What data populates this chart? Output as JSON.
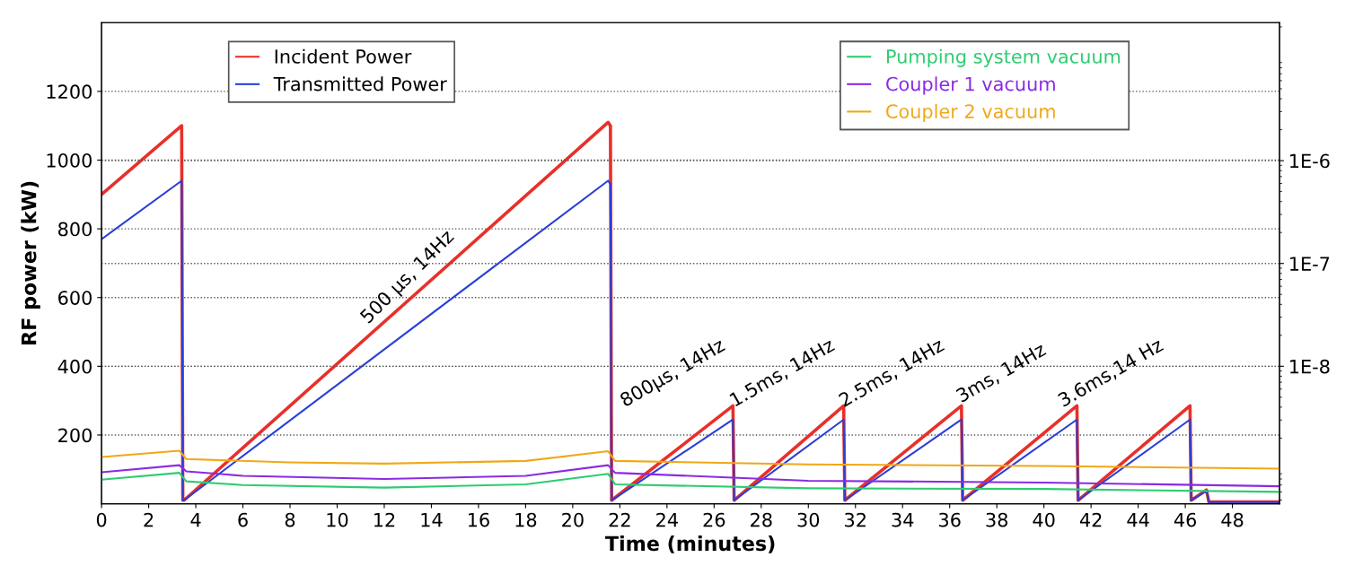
{
  "chart_data": {
    "type": "line",
    "xlabel": "Time (minutes)",
    "ylabel": "RF power (kW)",
    "xlim": [
      0,
      50
    ],
    "xticks": [
      0,
      2,
      4,
      6,
      8,
      10,
      12,
      14,
      16,
      18,
      20,
      22,
      24,
      26,
      28,
      30,
      32,
      34,
      36,
      38,
      40,
      42,
      44,
      46,
      48
    ],
    "ylim": [
      0,
      1400
    ],
    "yticks": [
      200,
      400,
      600,
      800,
      1000,
      1200
    ],
    "y2lim": [
      4.6e-10,
      2.2e-05
    ],
    "y2ticks": [
      {
        "value": 1e-08,
        "label": "1E-8"
      },
      {
        "value": 1e-07,
        "label": "1E-7"
      },
      {
        "value": 1e-06,
        "label": "1E-6"
      }
    ],
    "log": "y2",
    "grid": "y",
    "legend": "top",
    "series": [
      {
        "name": "Incident Power",
        "color": "#e8302a",
        "x": [
          0,
          3.4,
          3.45,
          3.5,
          21.5,
          21.6,
          21.65,
          26.8,
          26.85,
          31.5,
          31.55,
          36.5,
          36.55,
          41.4,
          41.45,
          46.2,
          46.25,
          46.9,
          47.0,
          50
        ],
        "values": [
          900,
          1100,
          10,
          10,
          1110,
          1100,
          10,
          285,
          10,
          285,
          10,
          285,
          10,
          285,
          10,
          285,
          10,
          40,
          5,
          5
        ]
      },
      {
        "name": "Transmitted Power",
        "color": "#2a3fd6",
        "x": [
          0,
          3.4,
          3.45,
          3.5,
          21.5,
          21.6,
          21.65,
          26.8,
          26.85,
          31.5,
          31.55,
          36.5,
          36.55,
          41.4,
          41.45,
          46.2,
          46.25,
          46.9,
          47.0,
          50
        ],
        "values": [
          770,
          940,
          10,
          10,
          940,
          930,
          10,
          245,
          10,
          245,
          10,
          245,
          10,
          245,
          10,
          245,
          10,
          38,
          5,
          5
        ]
      },
      {
        "name": "Pumping system vacuum",
        "color": "#2ecc71",
        "axis": "y2",
        "x": [
          0,
          3.3,
          3.6,
          6,
          12,
          18,
          21.5,
          21.8,
          30,
          40,
          50
        ],
        "values": [
          7.9e-10,
          9.2e-10,
          7.6e-10,
          7e-10,
          6.6e-10,
          7.1e-10,
          9e-10,
          7.1e-10,
          6.5e-10,
          6.4e-10,
          6e-10
        ]
      },
      {
        "name": "Coupler 1 vacuum",
        "color": "#8a2be2",
        "axis": "y2",
        "x": [
          0,
          3.3,
          3.6,
          6,
          12,
          18,
          21.5,
          21.8,
          30,
          40,
          50
        ],
        "values": [
          9.3e-10,
          1.09e-09,
          9.5e-10,
          8.6e-10,
          8e-10,
          8.6e-10,
          1.09e-09,
          9.2e-10,
          7.7e-10,
          7.4e-10,
          6.8e-10
        ]
      },
      {
        "name": "Coupler 2 vacuum",
        "color": "#f0a818",
        "axis": "y2",
        "x": [
          0,
          3.3,
          3.6,
          8,
          12,
          18,
          21.5,
          21.8,
          30,
          40,
          50
        ],
        "values": [
          1.31e-09,
          1.51e-09,
          1.25e-09,
          1.16e-09,
          1.13e-09,
          1.2e-09,
          1.49e-09,
          1.2e-09,
          1.11e-09,
          1.07e-09,
          1.01e-09
        ]
      }
    ],
    "annotations": [
      "500 µs, 14Hz",
      "800µs, 14Hz",
      "1.5ms, 14Hz",
      "2.5ms, 14Hz",
      "3ms, 14Hz",
      "3.6ms,14 Hz"
    ]
  }
}
